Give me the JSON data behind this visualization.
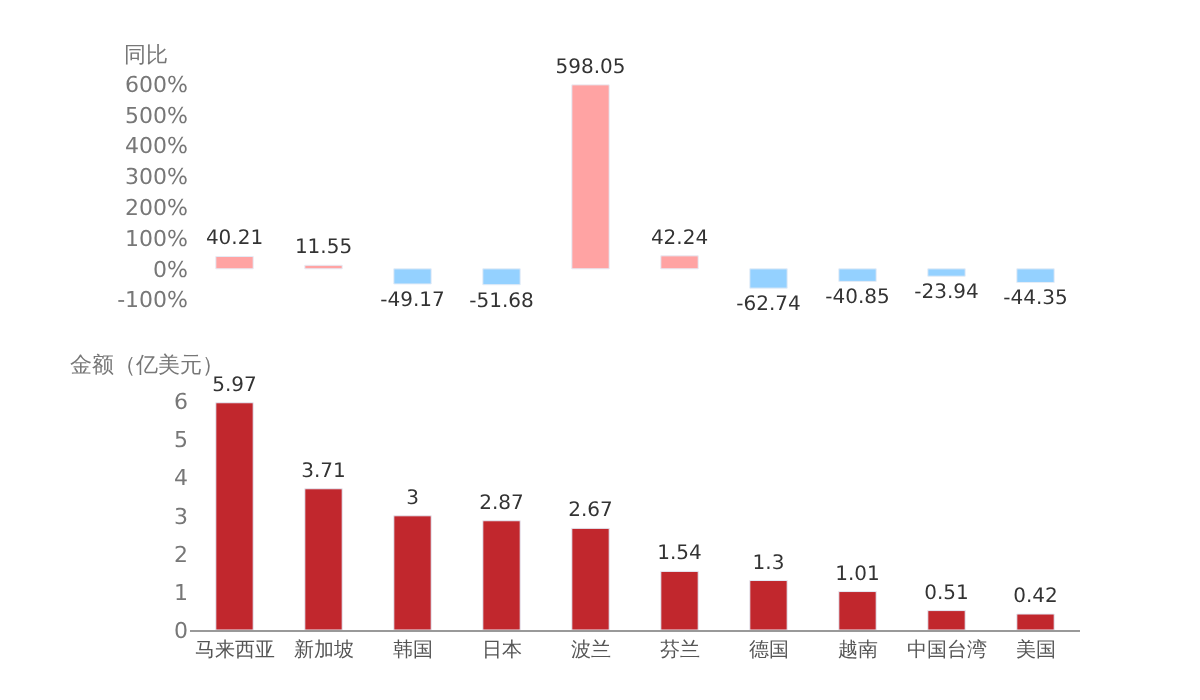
{
  "chart_data": [
    {
      "type": "bar",
      "ylabel": "同比",
      "categories": [
        "马来西亚",
        "新加坡",
        "韩国",
        "日本",
        "波兰",
        "芬兰",
        "德国",
        "越南",
        "中国台湾",
        "美国"
      ],
      "values": [
        40.21,
        11.55,
        -49.17,
        -51.68,
        598.05,
        42.24,
        -62.74,
        -40.85,
        -23.94,
        -44.35
      ],
      "colors": [
        "#ffa3a3",
        "#ffa3a3",
        "#94d1ff",
        "#94d1ff",
        "#ffa3a3",
        "#ffa3a3",
        "#94d1ff",
        "#94d1ff",
        "#94d1ff",
        "#94d1ff"
      ],
      "ylim": [
        -100,
        600
      ],
      "yticks": [
        {
          "value": -100,
          "label": "-100%"
        },
        {
          "value": 0,
          "label": "0%"
        },
        {
          "value": 100,
          "label": "100%"
        },
        {
          "value": 200,
          "label": "200%"
        },
        {
          "value": 300,
          "label": "300%"
        },
        {
          "value": 400,
          "label": "400%"
        },
        {
          "value": 500,
          "label": "500%"
        },
        {
          "value": 600,
          "label": "600%"
        }
      ],
      "data_labels": true,
      "tick_labels": "y"
    },
    {
      "type": "bar",
      "ylabel": "金额（亿美元）",
      "categories": [
        "马来西亚",
        "新加坡",
        "韩国",
        "日本",
        "波兰",
        "芬兰",
        "德国",
        "越南",
        "中国台湾",
        "美国"
      ],
      "values": [
        5.97,
        3.71,
        3,
        2.87,
        2.67,
        1.54,
        1.3,
        1.01,
        0.51,
        0.42
      ],
      "color": "#c1272d",
      "ylim": [
        0,
        6.2
      ],
      "yticks": [
        0,
        1,
        2,
        3,
        4,
        5,
        6
      ],
      "data_labels": true
    }
  ]
}
